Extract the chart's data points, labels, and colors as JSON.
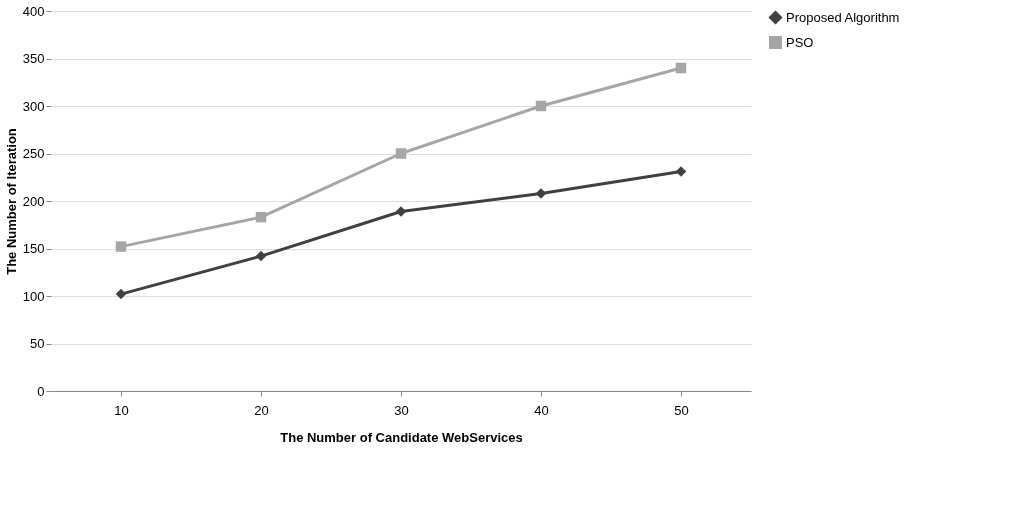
{
  "chart_data": {
    "type": "line",
    "xlabel": "The Number of Candidate WebServices",
    "ylabel": "The Number of Iteration",
    "categories": [
      "10",
      "20",
      "30",
      "40",
      "50"
    ],
    "series": [
      {
        "name": "Proposed Algorithm",
        "color": "#404040",
        "marker": "diamond",
        "values": [
          102,
          142,
          189,
          208,
          231
        ]
      },
      {
        "name": "PSO",
        "color": "#a6a6a6",
        "marker": "square",
        "values": [
          152,
          183,
          250,
          300,
          340
        ]
      }
    ],
    "ylim": [
      0,
      400
    ],
    "yticks": [
      0,
      50,
      100,
      150,
      200,
      250,
      300,
      350,
      400
    ],
    "grid": "y",
    "legend": "right",
    "line_style": "solid"
  }
}
